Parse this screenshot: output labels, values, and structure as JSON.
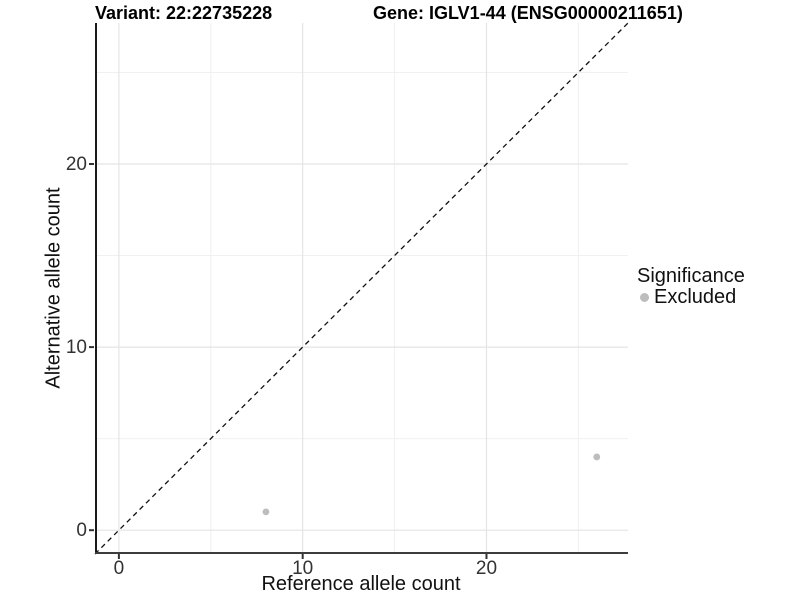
{
  "header": {
    "variant_title": "Variant: 22:22735228",
    "gene_title": "Gene: IGLV1-44 (ENSG00000211651)"
  },
  "chart_data": {
    "type": "scatter",
    "xlabel": "Reference allele count",
    "ylabel": "Alternative allele count",
    "xlim": [
      -1.3,
      27.7
    ],
    "ylim": [
      -1.3,
      27.7
    ],
    "x_ticks": [
      0,
      10,
      20
    ],
    "y_ticks": [
      0,
      10,
      20
    ],
    "x_minor_ticks": [
      5,
      15,
      25
    ],
    "y_minor_ticks": [
      5,
      15,
      25
    ],
    "grid": "major+minor",
    "reference_line": {
      "type": "identity",
      "style": "dashed",
      "color": "#111111"
    },
    "series": [
      {
        "name": "Excluded",
        "color": "#bdbdbd",
        "points": [
          [
            8,
            1
          ],
          [
            26,
            4
          ]
        ]
      }
    ],
    "legend": {
      "title": "Significance",
      "position": "right",
      "items": [
        {
          "label": "Excluded",
          "color": "#bdbdbd"
        }
      ]
    },
    "colors": {
      "major_grid": "#e4e4e4",
      "minor_grid": "#f0f0f0",
      "axis_line_y": "#1a1a1a",
      "axis_line_x": "#3d3d3d",
      "tick_mark": "#333333"
    }
  }
}
